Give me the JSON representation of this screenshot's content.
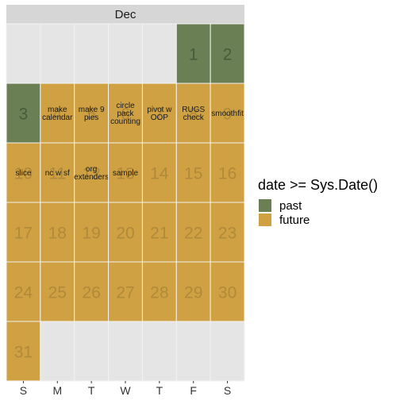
{
  "chart_data": {
    "type": "calendar",
    "month": "Dec",
    "weekdays": [
      "S",
      "M",
      "T",
      "W",
      "T",
      "F",
      "S"
    ],
    "first_weekday_index": 5,
    "days_in_month": 31,
    "legend": {
      "title": "date >= Sys.Date()",
      "items": [
        {
          "label": "past",
          "value": false
        },
        {
          "label": "future",
          "value": true
        }
      ]
    },
    "days": [
      {
        "day": 1,
        "value": false,
        "event": ""
      },
      {
        "day": 2,
        "value": false,
        "event": ""
      },
      {
        "day": 3,
        "value": false,
        "event": ""
      },
      {
        "day": 4,
        "value": true,
        "event": "make\ncalendar"
      },
      {
        "day": 5,
        "value": true,
        "event": "make 9\npies"
      },
      {
        "day": 6,
        "value": true,
        "event": "circle\npack\ncounting"
      },
      {
        "day": 7,
        "value": true,
        "event": "pivot w\nOOP"
      },
      {
        "day": 8,
        "value": true,
        "event": "RUGS\ncheck"
      },
      {
        "day": 9,
        "value": true,
        "event": "smoothfit"
      },
      {
        "day": 10,
        "value": true,
        "event": "slice"
      },
      {
        "day": 11,
        "value": true,
        "event": "nc w sf"
      },
      {
        "day": 12,
        "value": true,
        "event": "org\nextenders"
      },
      {
        "day": 13,
        "value": true,
        "event": "sample"
      },
      {
        "day": 14,
        "value": true,
        "event": ""
      },
      {
        "day": 15,
        "value": true,
        "event": ""
      },
      {
        "day": 16,
        "value": true,
        "event": ""
      },
      {
        "day": 17,
        "value": true,
        "event": ""
      },
      {
        "day": 18,
        "value": true,
        "event": ""
      },
      {
        "day": 19,
        "value": true,
        "event": ""
      },
      {
        "day": 20,
        "value": true,
        "event": ""
      },
      {
        "day": 21,
        "value": true,
        "event": ""
      },
      {
        "day": 22,
        "value": true,
        "event": ""
      },
      {
        "day": 23,
        "value": true,
        "event": ""
      },
      {
        "day": 24,
        "value": true,
        "event": ""
      },
      {
        "day": 25,
        "value": true,
        "event": ""
      },
      {
        "day": 26,
        "value": true,
        "event": ""
      },
      {
        "day": 27,
        "value": true,
        "event": ""
      },
      {
        "day": 28,
        "value": true,
        "event": ""
      },
      {
        "day": 29,
        "value": true,
        "event": ""
      },
      {
        "day": 30,
        "value": true,
        "event": ""
      },
      {
        "day": 31,
        "value": true,
        "event": ""
      }
    ],
    "colors": {
      "past": "#6b7f54",
      "future": "#cfa142",
      "empty": "#e5e5e5",
      "strip": "#d6d6d6",
      "past_number": "#4a5a3a",
      "future_number": "#b08a3a",
      "cell_border": "#f2f2f2"
    }
  }
}
